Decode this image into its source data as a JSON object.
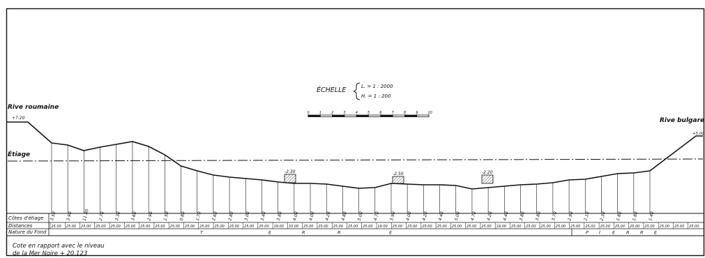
{
  "scale": {
    "title": "ÉCHELLE",
    "length": "L. = 1 : 2000",
    "height": "H. = 1 : 200",
    "ticks": [
      "0",
      "1",
      "2",
      "3",
      "4",
      "5",
      "6",
      "7",
      "8",
      "9",
      "10"
    ]
  },
  "banks": {
    "left": {
      "name": "Rive roumaine",
      "elevation": "+7.20"
    },
    "right": {
      "name": "Rive bulgare",
      "elevation": "+5.00"
    }
  },
  "water_level_label": "Étiage",
  "table": {
    "row_labels": [
      "Côtes d'étiage",
      "Distances",
      "Nature du Fond"
    ],
    "depths": [
      "3.50",
      "3.90",
      "11.80",
      "2.70",
      "3.30",
      "3.60",
      "2.90",
      "1.50",
      "0.80",
      "1.70",
      "2.60",
      "2.80",
      "3.00",
      "3.40",
      "3.80",
      "4.00",
      "4.00",
      "4.20",
      "4.80",
      "5.00",
      "4.70",
      "3.90",
      "4.00",
      "4.20",
      "4.40",
      "5.00",
      "4.70",
      "4.20",
      "4.40",
      "3.80",
      "3.80",
      "3.70",
      "2.90",
      "2.10",
      "2.30",
      "1.80",
      "1.80",
      "1.40"
    ],
    "distances": [
      "25.00",
      "25.00",
      "25.00",
      "25.00",
      "25.00",
      "25.00",
      "25.00",
      "25.00",
      "25.00",
      "25.00",
      "25.00",
      "25.00",
      "25.00",
      "25.00",
      "25.00",
      "19.00",
      "33.00",
      "25.00",
      "25.00",
      "25.00",
      "25.00",
      "25.00",
      "19.00",
      "25.00",
      "25.00",
      "25.00",
      "25.00",
      "25.00",
      "25.00",
      "25.00",
      "19.00",
      "25.00",
      "25.00",
      "25.00",
      "25.00",
      "25.00",
      "25.00",
      "25.00",
      "25.00",
      "25.00",
      "25.00",
      "25.00",
      "25.00",
      "25.00"
    ],
    "nature_terre": [
      "T",
      "E",
      "R",
      "R",
      "E"
    ],
    "nature_pierre": [
      "P",
      "I",
      "E",
      "R",
      "R",
      "E"
    ]
  },
  "obstacles": [
    "-2.30",
    "-2.50",
    "-2.20"
  ],
  "reference_note": {
    "line1": "Cote en rapport avec le niveau",
    "line2": "de la Mer Noire + 20.123"
  }
}
